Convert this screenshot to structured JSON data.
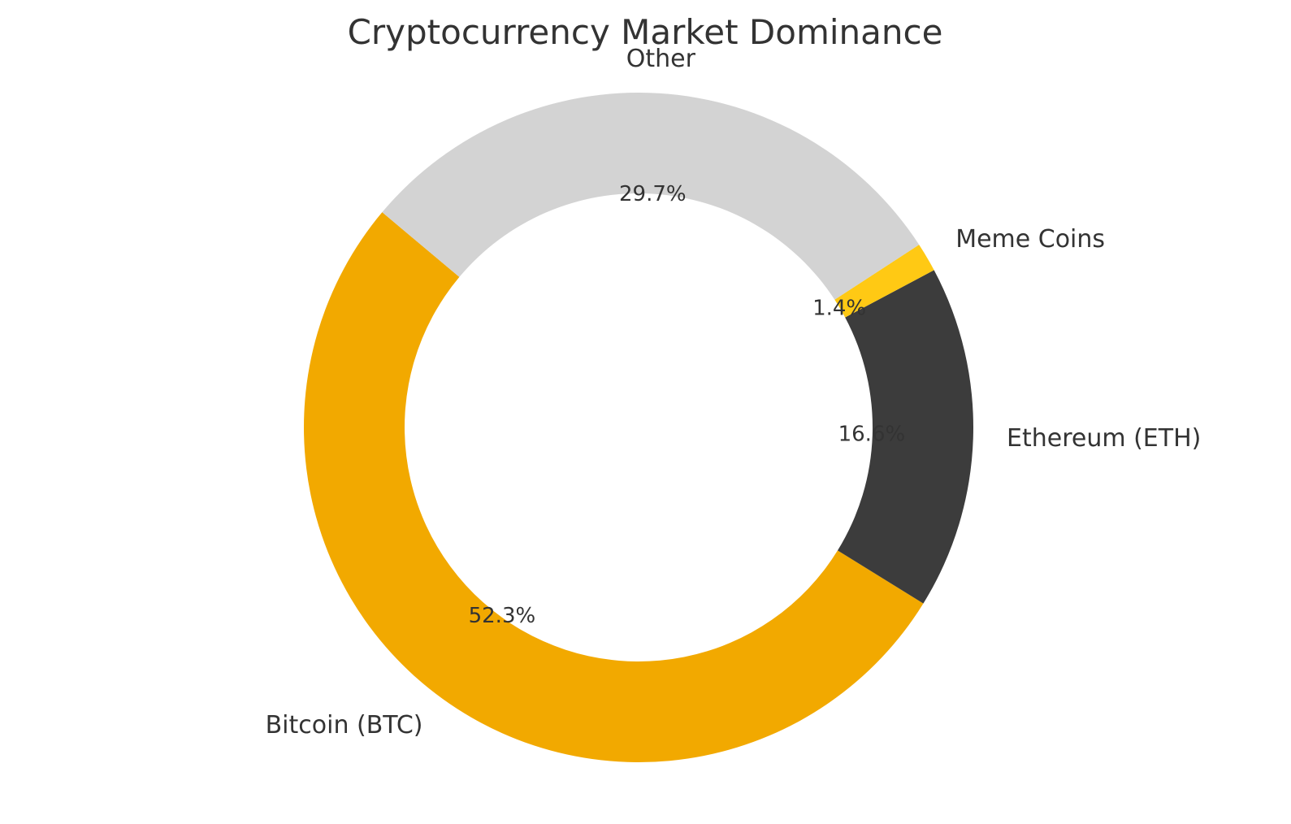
{
  "chart_data": {
    "type": "pie",
    "variant": "donut",
    "title": "Cryptocurrency Market Dominance",
    "legend": "none",
    "direction": "counterclockwise",
    "slices": [
      {
        "label": "Bitcoin (BTC)",
        "value": 52.3,
        "display": "52.3%",
        "color": "#F2A900"
      },
      {
        "label": "Ethereum (ETH)",
        "value": 16.6,
        "display": "16.6%",
        "color": "#3C3C3C"
      },
      {
        "label": "Meme Coins",
        "value": 1.4,
        "display": "1.4%",
        "color": "#FFC914"
      },
      {
        "label": "Other",
        "value": 29.7,
        "display": "29.7%",
        "color": "#D3D3D3"
      }
    ]
  }
}
